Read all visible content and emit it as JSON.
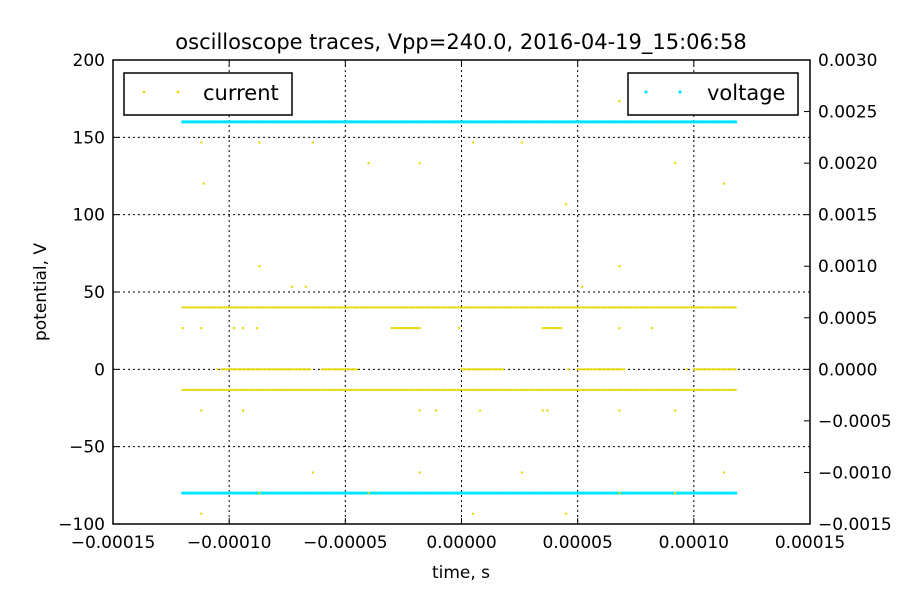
{
  "chart_data": {
    "type": "scatter",
    "title": "oscilloscope traces, Vpp=240.0, 2016-04-19_15:06:58",
    "xlabel": "time, s",
    "ylabel": "potential, V",
    "xlim": [
      -0.00015,
      0.00015
    ],
    "ylim": [
      -100,
      200
    ],
    "y2lim": [
      -0.0015,
      0.003
    ],
    "grid": true,
    "x_ticks": [
      "-0.00015",
      "-0.00010",
      "-0.00005",
      "0.00000",
      "0.00005",
      "0.00010",
      "0.00015"
    ],
    "y_ticks": [
      "-100",
      "-50",
      "0",
      "50",
      "100",
      "150",
      "200"
    ],
    "y2_ticks": [
      "-0.0015",
      "-0.0010",
      "-0.0005",
      "0.0000",
      "0.0005",
      "0.0010",
      "0.0015",
      "0.0020",
      "0.0025",
      "0.0030"
    ],
    "series": [
      {
        "name": "voltage",
        "axis": "left",
        "color": "#00e5ff",
        "legend_position": "upper right",
        "x_range": [
          -0.00012,
          0.000118
        ],
        "levels": [
          160,
          -80
        ],
        "samples_per_level": 240
      },
      {
        "name": "current",
        "axis": "right",
        "color": "#e6d800",
        "legend_position": "upper left",
        "x_range": [
          -0.00012,
          0.000118
        ],
        "dense_levels": [
          0.0006,
          -0.0002
        ],
        "samples_per_level": 240,
        "mid_level": 0.0,
        "mid_segments": [
          [
            -0.000103,
            -6.5e-05
          ],
          [
            -6e-05,
            -4.5e-05
          ],
          [
            0.0,
            1.8e-05
          ],
          [
            5e-05,
            7e-05
          ],
          [
            0.0001,
            0.000118
          ]
        ],
        "low_mid_level": 0.0004,
        "low_mid_segments": [
          [
            -3e-05,
            -1.8e-05
          ],
          [
            3.5e-05,
            4.3e-05
          ]
        ],
        "sparse_points": [
          [
            -0.000112,
            0.0022
          ],
          [
            -0.000111,
            0.0018
          ],
          [
            -8.7e-05,
            0.0022
          ],
          [
            -8.7e-05,
            0.001
          ],
          [
            -7.3e-05,
            0.0008
          ],
          [
            -6.7e-05,
            0.0008
          ],
          [
            -6.4e-05,
            0.0022
          ],
          [
            -4e-05,
            0.002
          ],
          [
            -1.8e-05,
            0.002
          ],
          [
            5e-06,
            0.0022
          ],
          [
            2.6e-05,
            0.0022
          ],
          [
            4.5e-05,
            0.0016
          ],
          [
            5.2e-05,
            0.0008
          ],
          [
            6.8e-05,
            0.0026
          ],
          [
            6.8e-05,
            0.001
          ],
          [
            9.2e-05,
            0.002
          ],
          [
            0.000113,
            0.0018
          ],
          [
            -0.00012,
            0.0004
          ],
          [
            -0.000112,
            0.0004
          ],
          [
            -9.8e-05,
            0.0004
          ],
          [
            -9.4e-05,
            0.0004
          ],
          [
            -8.8e-05,
            0.0004
          ],
          [
            -1e-06,
            0.0004
          ],
          [
            6.8e-05,
            0.0004
          ],
          [
            8.2e-05,
            0.0004
          ],
          [
            -0.000112,
            -0.0004
          ],
          [
            -9.4e-05,
            -0.0004
          ],
          [
            -1.8e-05,
            -0.0004
          ],
          [
            -1.1e-05,
            -0.0004
          ],
          [
            8e-06,
            -0.0004
          ],
          [
            3.5e-05,
            -0.0004
          ],
          [
            3.7e-05,
            -0.0004
          ],
          [
            6.8e-05,
            -0.0004
          ],
          [
            9.2e-05,
            -0.0004
          ],
          [
            -6.4e-05,
            -0.001
          ],
          [
            -1.8e-05,
            -0.001
          ],
          [
            2.6e-05,
            -0.001
          ],
          [
            0.000113,
            -0.001
          ],
          [
            -0.000112,
            -0.0014
          ],
          [
            5e-06,
            -0.0014
          ],
          [
            4.5e-05,
            -0.0014
          ],
          [
            -8.7e-05,
            -0.0012
          ],
          [
            -4e-05,
            -0.0012
          ],
          [
            6.8e-05,
            -0.0012
          ],
          [
            9.2e-05,
            -0.0012
          ],
          [
            -0.000105,
            0.0
          ],
          [
            -5e-05,
            0.0
          ],
          [
            3e-06,
            0.0
          ],
          [
            4.6e-05,
            0.0
          ],
          [
            9.7e-05,
            0.0
          ]
        ]
      }
    ]
  }
}
